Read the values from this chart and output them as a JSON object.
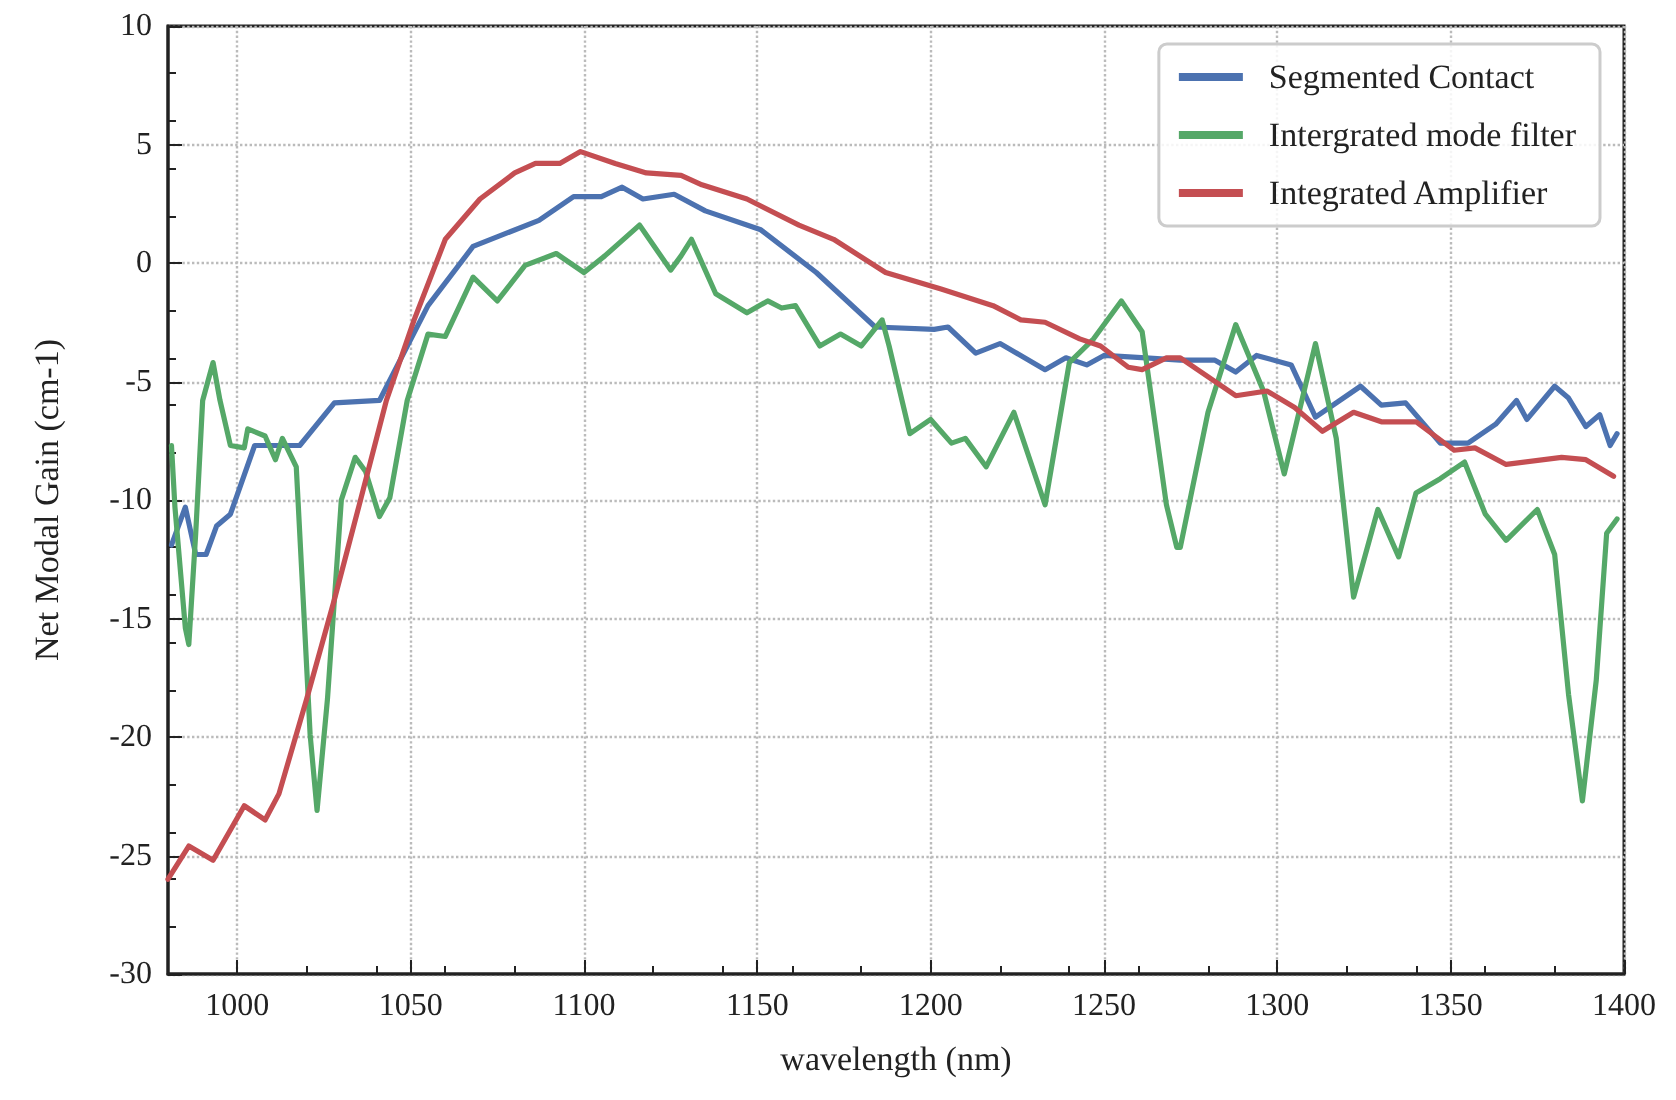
{
  "chart_data": {
    "type": "line",
    "xlabel": "wavelength (nm)",
    "ylabel": "Net Modal Gain (cm-1)",
    "xlim": [
      980,
      1400
    ],
    "xticks": [
      1000,
      1050,
      1100,
      1150,
      1200,
      1250,
      1300,
      1350,
      1400
    ],
    "ylim": [
      -30,
      10
    ],
    "yticks": [
      -30,
      -25,
      -20,
      -15,
      -10,
      -5,
      0,
      5,
      10
    ],
    "grid": true,
    "legend": "top right",
    "marker": "none",
    "line_style": "solid",
    "series": [
      {
        "name": "Segmented Contact",
        "color": "#4c72b0",
        "x": [
          981,
          985,
          988,
          991,
          994,
          998,
          1005,
          1018,
          1028,
          1041,
          1055,
          1068,
          1087,
          1097,
          1105,
          1111,
          1117,
          1126,
          1135,
          1151,
          1167,
          1184,
          1201,
          1205,
          1213,
          1220,
          1233,
          1239,
          1245,
          1250,
          1262,
          1272,
          1282,
          1288,
          1294,
          1304,
          1311,
          1324,
          1330,
          1337,
          1347,
          1355,
          1363,
          1369,
          1372,
          1380,
          1384,
          1389,
          1393,
          1396,
          1398
        ],
        "values": [
          -11.9,
          -10.3,
          -12.3,
          -12.3,
          -11.1,
          -10.6,
          -7.7,
          -7.7,
          -5.9,
          -5.8,
          -1.8,
          0.7,
          1.8,
          2.8,
          2.8,
          3.2,
          2.7,
          2.9,
          2.2,
          1.4,
          -0.4,
          -2.7,
          -2.8,
          -2.7,
          -3.8,
          -3.4,
          -4.5,
          -4.0,
          -4.3,
          -3.9,
          -4.0,
          -4.1,
          -4.1,
          -4.6,
          -3.9,
          -4.3,
          -6.5,
          -5.2,
          -6.0,
          -5.9,
          -7.6,
          -7.6,
          -6.8,
          -5.8,
          -6.6,
          -5.2,
          -5.7,
          -6.9,
          -6.4,
          -7.7,
          -7.2
        ]
      },
      {
        "name": "Intergrated mode filter",
        "color": "#55a868",
        "x": [
          981,
          982,
          985,
          986,
          988,
          990,
          993,
          995,
          998,
          1002,
          1003,
          1008,
          1011,
          1013,
          1017,
          1019,
          1021,
          1023,
          1026,
          1030,
          1034,
          1037,
          1041,
          1044,
          1049,
          1055,
          1060,
          1068,
          1075,
          1083,
          1092,
          1100,
          1106,
          1116,
          1125,
          1128,
          1131,
          1138,
          1147,
          1153,
          1157,
          1161,
          1168,
          1174,
          1180,
          1186,
          1188,
          1194,
          1200,
          1206,
          1210,
          1216,
          1224,
          1233,
          1240,
          1247,
          1255,
          1261,
          1268,
          1271,
          1272,
          1280,
          1288,
          1296,
          1302,
          1311,
          1317,
          1322,
          1329,
          1335,
          1340,
          1347,
          1354,
          1360,
          1366,
          1375,
          1380,
          1384,
          1388,
          1392,
          1395,
          1398
        ],
        "values": [
          -7.7,
          -10.3,
          -15.4,
          -16.1,
          -11.4,
          -5.8,
          -4.2,
          -5.8,
          -7.7,
          -7.8,
          -7.0,
          -7.3,
          -8.3,
          -7.4,
          -8.6,
          -14.2,
          -19.9,
          -23.1,
          -18.4,
          -10.0,
          -8.2,
          -8.8,
          -10.7,
          -9.9,
          -5.8,
          -3.0,
          -3.1,
          -0.6,
          -1.6,
          -0.1,
          0.4,
          -0.4,
          0.3,
          1.6,
          -0.3,
          0.3,
          1.0,
          -1.3,
          -2.1,
          -1.6,
          -1.9,
          -1.8,
          -3.5,
          -3.0,
          -3.5,
          -2.4,
          -3.5,
          -7.2,
          -6.6,
          -7.6,
          -7.4,
          -8.6,
          -6.3,
          -10.2,
          -4.2,
          -3.2,
          -1.6,
          -2.9,
          -10.2,
          -12.0,
          -12.0,
          -6.3,
          -2.6,
          -5.4,
          -8.9,
          -3.4,
          -7.4,
          -14.1,
          -10.4,
          -12.4,
          -9.7,
          -9.1,
          -8.4,
          -10.6,
          -11.7,
          -10.4,
          -12.3,
          -18.2,
          -22.7,
          -17.6,
          -11.4,
          -10.8
        ]
      },
      {
        "name": "Integrated Amplifier",
        "color": "#c44e52",
        "x": [
          980,
          986,
          993,
          1002,
          1008,
          1012,
          1020,
          1028,
          1035,
          1043,
          1051,
          1060,
          1070,
          1080,
          1086,
          1093,
          1099,
          1109,
          1118,
          1128,
          1134,
          1147,
          1162,
          1172,
          1187,
          1203,
          1218,
          1226,
          1233,
          1243,
          1249,
          1257,
          1261,
          1268,
          1272,
          1288,
          1297,
          1305,
          1313,
          1322,
          1330,
          1340,
          1351,
          1357,
          1366,
          1382,
          1389,
          1397
        ],
        "values": [
          -26.0,
          -24.6,
          -25.2,
          -22.9,
          -23.5,
          -22.4,
          -18.4,
          -14.2,
          -10.3,
          -5.8,
          -2.4,
          1.0,
          2.7,
          3.8,
          4.2,
          4.2,
          4.7,
          4.2,
          3.8,
          3.7,
          3.3,
          2.7,
          1.6,
          1.0,
          -0.4,
          -1.1,
          -1.8,
          -2.4,
          -2.5,
          -3.2,
          -3.5,
          -4.4,
          -4.5,
          -4.0,
          -4.0,
          -5.6,
          -5.4,
          -6.1,
          -7.1,
          -6.3,
          -6.7,
          -6.7,
          -7.9,
          -7.8,
          -8.5,
          -8.2,
          -8.3,
          -9.0
        ]
      }
    ]
  }
}
